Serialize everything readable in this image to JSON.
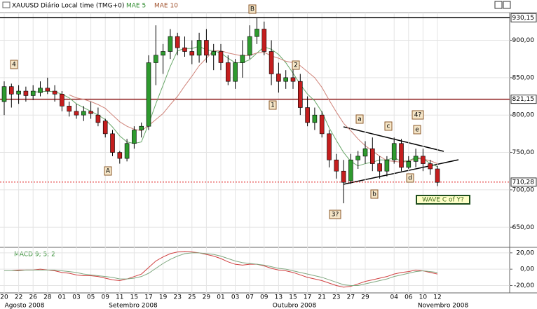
{
  "chart_data": [
    {
      "type": "candlestick",
      "title": "XAUUSD Diário Local time (TMG+0)",
      "categories": [
        "20",
        null,
        "22",
        null,
        "26",
        null,
        "28",
        null,
        "01",
        null,
        "03",
        null,
        "05",
        null,
        "09",
        null,
        "11",
        null,
        "15",
        null,
        "17",
        null,
        "19",
        null,
        "23",
        null,
        "25",
        null,
        "29",
        null,
        "01",
        null,
        "03",
        null,
        "07",
        null,
        "09",
        null,
        "13",
        null,
        "15",
        null,
        "17",
        null,
        "21",
        null,
        "23",
        null,
        "27",
        null,
        "29",
        null,
        null,
        null,
        "04",
        null,
        "06",
        null,
        "10",
        null,
        "12"
      ],
      "x_groups": [
        "Agosto 2008",
        "Setembro 2008",
        "Outubro 2008",
        "Novembro 2008"
      ],
      "ohlc": [
        [
          818,
          845,
          800,
          838
        ],
        [
          838,
          842,
          810,
          828
        ],
        [
          828,
          840,
          815,
          832
        ],
        [
          832,
          838,
          818,
          826
        ],
        [
          826,
          840,
          820,
          832
        ],
        [
          830,
          845,
          825,
          836
        ],
        [
          836,
          850,
          828,
          832
        ],
        [
          832,
          840,
          818,
          828
        ],
        [
          828,
          832,
          805,
          812
        ],
        [
          812,
          818,
          798,
          805
        ],
        [
          805,
          815,
          795,
          800
        ],
        [
          800,
          812,
          792,
          805
        ],
        [
          805,
          818,
          795,
          802
        ],
        [
          800,
          810,
          785,
          790
        ],
        [
          792,
          795,
          770,
          775
        ],
        [
          775,
          780,
          745,
          750
        ],
        [
          750,
          752,
          735,
          742
        ],
        [
          742,
          768,
          738,
          762
        ],
        [
          762,
          785,
          755,
          780
        ],
        [
          780,
          790,
          770,
          785
        ],
        [
          785,
          880,
          780,
          870
        ],
        [
          870,
          920,
          840,
          880
        ],
        [
          880,
          895,
          855,
          885
        ],
        [
          885,
          915,
          875,
          905
        ],
        [
          905,
          910,
          880,
          890
        ],
        [
          890,
          905,
          878,
          885
        ],
        [
          885,
          900,
          868,
          880
        ],
        [
          880,
          910,
          870,
          900
        ],
        [
          900,
          915,
          870,
          880
        ],
        [
          880,
          895,
          860,
          885
        ],
        [
          885,
          895,
          860,
          870
        ],
        [
          870,
          880,
          840,
          845
        ],
        [
          845,
          875,
          835,
          870
        ],
        [
          870,
          900,
          850,
          880
        ],
        [
          880,
          920,
          875,
          905
        ],
        [
          905,
          930,
          895,
          915
        ],
        [
          915,
          925,
          880,
          885
        ],
        [
          885,
          900,
          840,
          855
        ],
        [
          855,
          870,
          830,
          845
        ],
        [
          845,
          860,
          835,
          850
        ],
        [
          850,
          865,
          835,
          845
        ],
        [
          845,
          855,
          800,
          810
        ],
        [
          810,
          825,
          785,
          790
        ],
        [
          790,
          810,
          780,
          800
        ],
        [
          800,
          805,
          770,
          775
        ],
        [
          775,
          780,
          730,
          740
        ],
        [
          740,
          748,
          715,
          725
        ],
        [
          725,
          740,
          682,
          710
        ],
        [
          712,
          748,
          708,
          740
        ],
        [
          740,
          752,
          728,
          745
        ],
        [
          745,
          765,
          735,
          755
        ],
        [
          755,
          770,
          725,
          735
        ],
        [
          735,
          745,
          715,
          725
        ],
        [
          725,
          745,
          718,
          740
        ],
        [
          740,
          770,
          735,
          762
        ],
        [
          762,
          768,
          725,
          730
        ],
        [
          730,
          745,
          728,
          738
        ],
        [
          738,
          755,
          730,
          745
        ],
        [
          745,
          755,
          725,
          735
        ],
        [
          735,
          740,
          720,
          728
        ],
        [
          728,
          732,
          705,
          710
        ]
      ],
      "up_color": "#2e9a2e",
      "down_color": "#c41e1e",
      "series": [
        {
          "name": "MAE 5",
          "color": "#6aa86a",
          "values": [
            null,
            null,
            null,
            null,
            831,
            831,
            832,
            831,
            828,
            823,
            815,
            810,
            805,
            800,
            794,
            784,
            772,
            764,
            762,
            764,
            788,
            815,
            840,
            865,
            886,
            889,
            889,
            892,
            887,
            886,
            883,
            876,
            870,
            870,
            874,
            883,
            891,
            888,
            881,
            870,
            856,
            841,
            828,
            819,
            804,
            783,
            766,
            750,
            738,
            732,
            735,
            737,
            740,
            740,
            743,
            738,
            739,
            743,
            742,
            735,
            731
          ]
        },
        {
          "name": "MAE 10",
          "color": "#d0847a",
          "values": [
            null,
            null,
            null,
            null,
            null,
            null,
            null,
            null,
            null,
            827,
            823,
            821,
            818,
            814,
            809,
            800,
            791,
            785,
            781,
            779,
            786,
            794,
            802,
            814,
            825,
            839,
            852,
            866,
            876,
            886,
            886,
            883,
            881,
            879,
            880,
            883,
            884,
            879,
            876,
            872,
            870,
            866,
            858,
            850,
            837,
            820,
            804,
            789,
            779,
            768,
            759,
            752,
            745,
            739,
            738,
            737,
            738,
            742,
            741,
            739,
            735
          ]
        }
      ],
      "ylim": [
        624,
        937
      ],
      "yticks": [
        {
          "value": 900,
          "label": "900,00"
        },
        {
          "value": 850,
          "label": "850,00"
        },
        {
          "value": 800,
          "label": "800,00"
        },
        {
          "value": 750,
          "label": "750,00"
        },
        {
          "value": 700,
          "label": "700,00"
        },
        {
          "value": 650,
          "label": "650,00"
        }
      ],
      "hlines": [
        {
          "value": 930.15,
          "label": "930,15",
          "color": "#000000"
        },
        {
          "value": 821.15,
          "label": "821,15",
          "color": "#8b1a1a"
        },
        {
          "value": 710.28,
          "label": "710,28",
          "color": "#e02020"
        }
      ],
      "annotations": [
        "4",
        "B",
        "2",
        "1",
        "A",
        "a",
        "b",
        "c",
        "d",
        "e",
        "4?",
        "3?",
        "WAVE C of Y?"
      ]
    },
    {
      "type": "line",
      "title": "MACD 9; 5; 2",
      "series": [
        {
          "color": "#d04040",
          "values": [
            -2,
            -2,
            -1,
            -1,
            -1,
            0,
            -1,
            -2,
            -4,
            -5,
            -7,
            -8,
            -8,
            -9,
            -11,
            -13,
            -14,
            -12,
            -9,
            -6,
            2,
            10,
            15,
            19,
            21,
            22,
            21,
            20,
            18,
            16,
            13,
            9,
            6,
            5,
            6,
            6,
            4,
            1,
            -1,
            -2,
            -4,
            -7,
            -10,
            -12,
            -14,
            -17,
            -20,
            -22,
            -21,
            -18,
            -15,
            -13,
            -11,
            -9,
            -6,
            -4,
            -3,
            -1,
            -2,
            -4,
            -6
          ]
        },
        {
          "color": "#80a880",
          "values": [
            -2,
            -2,
            -2,
            -1,
            -1,
            -1,
            -1,
            -1,
            -2,
            -3,
            -4,
            -6,
            -7,
            -8,
            -9,
            -10,
            -12,
            -12,
            -11,
            -9,
            -5,
            1,
            7,
            12,
            16,
            19,
            20,
            20,
            19,
            18,
            16,
            13,
            10,
            8,
            7,
            6,
            5,
            3,
            1,
            0,
            -2,
            -4,
            -6,
            -8,
            -10,
            -13,
            -16,
            -19,
            -20,
            -20,
            -18,
            -16,
            -14,
            -12,
            -9,
            -7,
            -5,
            -3,
            -2,
            -3,
            -4
          ]
        }
      ],
      "ylim": [
        -29,
        25
      ],
      "yticks": [
        {
          "value": 20,
          "label": "20,00"
        },
        {
          "value": 0,
          "label": "0,00"
        },
        {
          "value": -20,
          "label": "-20,00"
        }
      ]
    }
  ]
}
